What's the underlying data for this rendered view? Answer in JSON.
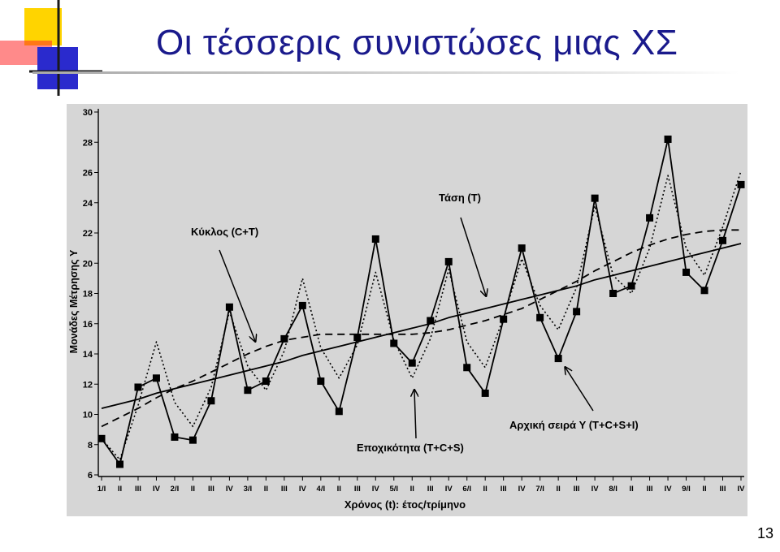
{
  "slide": {
    "title": "Οι τέσσερις συνιστώσες μιας ΧΣ",
    "page_number": "13"
  },
  "colors": {
    "title": "#1a1a8c",
    "chart_background": "#d6d6d6",
    "logo_yellow": "#ffd400",
    "logo_red": "#ff2a2a",
    "logo_blue": "#2a2acd"
  },
  "chart_data": {
    "type": "line",
    "title": "",
    "xlabel": "Χρόνος (t): έτος/τρίμηνο",
    "ylabel": "Μονάδες Μέτρησης Y",
    "ylim": [
      6,
      30
    ],
    "yticks": [
      6,
      8,
      10,
      12,
      14,
      16,
      18,
      20,
      22,
      24,
      26,
      28,
      30
    ],
    "grid": false,
    "categories": [
      "1/I",
      "II",
      "III",
      "IV",
      "2/I",
      "II",
      "III",
      "IV",
      "3/I",
      "II",
      "III",
      "IV",
      "4/I",
      "II",
      "III",
      "IV",
      "5/I",
      "II",
      "III",
      "IV",
      "6/I",
      "II",
      "III",
      "IV",
      "7/I",
      "II",
      "III",
      "IV",
      "8/I",
      "II",
      "III",
      "IV",
      "9/I",
      "II",
      "III",
      "IV"
    ],
    "series": [
      {
        "name": "Αρχική σειρά Y (T+C+S+I)",
        "style": "solid-markers",
        "values": [
          8.4,
          6.7,
          11.8,
          12.4,
          8.5,
          8.3,
          10.9,
          17.1,
          11.6,
          12.2,
          15.0,
          17.2,
          12.2,
          10.2,
          15.1,
          21.6,
          14.7,
          13.4,
          16.2,
          20.1,
          13.1,
          11.4,
          16.3,
          21.0,
          16.4,
          13.7,
          16.8,
          24.3,
          18.0,
          18.5,
          23.0,
          28.2,
          19.4,
          18.2,
          21.5,
          25.2
        ]
      },
      {
        "name": "Εποχικότητα (T+C+S)",
        "style": "dotted",
        "values": [
          8.4,
          7.0,
          10.6,
          14.8,
          10.8,
          9.2,
          11.8,
          16.8,
          13.2,
          11.6,
          14.2,
          19.0,
          14.4,
          12.4,
          14.6,
          19.4,
          14.9,
          12.4,
          15.0,
          19.6,
          14.8,
          13.1,
          16.4,
          20.3,
          17.2,
          15.6,
          18.4,
          23.8,
          19.2,
          18.0,
          21.0,
          25.8,
          21.0,
          19.2,
          22.4,
          26.1
        ]
      },
      {
        "name": "Κύκλος (C+T)",
        "style": "dashed",
        "values": [
          9.2,
          9.8,
          10.4,
          11.1,
          11.7,
          12.2,
          12.8,
          13.4,
          14.0,
          14.5,
          14.9,
          15.1,
          15.3,
          15.3,
          15.3,
          15.3,
          15.3,
          15.3,
          15.4,
          15.6,
          15.9,
          16.2,
          16.6,
          17.0,
          17.6,
          18.2,
          18.8,
          19.5,
          20.1,
          20.7,
          21.2,
          21.6,
          21.9,
          22.1,
          22.2,
          22.2
        ]
      },
      {
        "name": "Τάση (T)",
        "style": "solid",
        "values": [
          10.4,
          10.7,
          11.0,
          11.4,
          11.7,
          12.0,
          12.3,
          12.6,
          12.9,
          13.2,
          13.5,
          13.9,
          14.2,
          14.5,
          14.8,
          15.1,
          15.4,
          15.7,
          16.0,
          16.4,
          16.7,
          17.0,
          17.3,
          17.6,
          17.9,
          18.2,
          18.5,
          18.9,
          19.2,
          19.5,
          19.8,
          20.1,
          20.4,
          20.7,
          21.0,
          21.3
        ]
      }
    ],
    "annotations": [
      {
        "text": "Τάση (T)",
        "target_series": "Τάση (T)"
      },
      {
        "text": "Κύκλος (C+T)",
        "target_series": "Κύκλος (C+T)"
      },
      {
        "text": "Εποχικότητα (T+C+S)",
        "target_series": "Εποχικότητα (T+C+S)"
      },
      {
        "text": "Αρχική σειρά Y (T+C+S+I)",
        "target_series": "Αρχική σειρά Y (T+C+S+I)"
      }
    ]
  }
}
